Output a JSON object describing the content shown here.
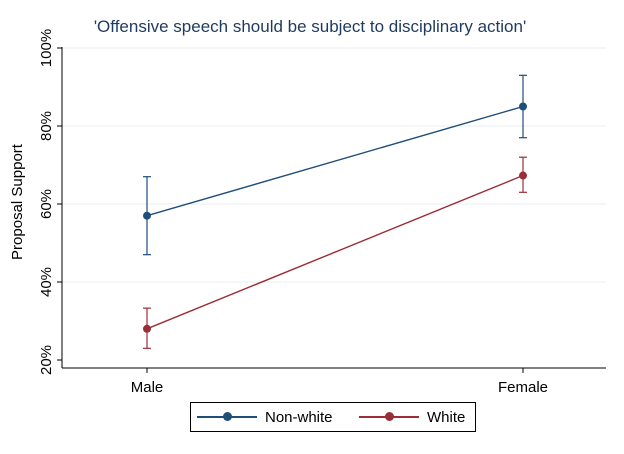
{
  "chart_data": {
    "type": "line",
    "title": "'Offensive speech should be subject to disciplinary action'",
    "xlabel": "",
    "ylabel": "Proposal Support",
    "categories": [
      "Male",
      "Female"
    ],
    "ylim": [
      20,
      100
    ],
    "yticks": [
      20,
      40,
      60,
      80,
      100
    ],
    "ytick_labels": [
      "20%",
      "40%",
      "60%",
      "80%",
      "100%"
    ],
    "grid": true,
    "legend_position": "bottom-center",
    "series": [
      {
        "name": "Non-white",
        "color": "#1f4e79",
        "values": [
          57,
          85
        ],
        "lower": [
          47,
          77
        ],
        "upper": [
          67,
          93
        ]
      },
      {
        "name": "White",
        "color": "#9b2d38",
        "values": [
          28,
          67.3
        ],
        "lower": [
          23,
          63
        ],
        "upper": [
          33.3,
          72
        ]
      }
    ]
  }
}
